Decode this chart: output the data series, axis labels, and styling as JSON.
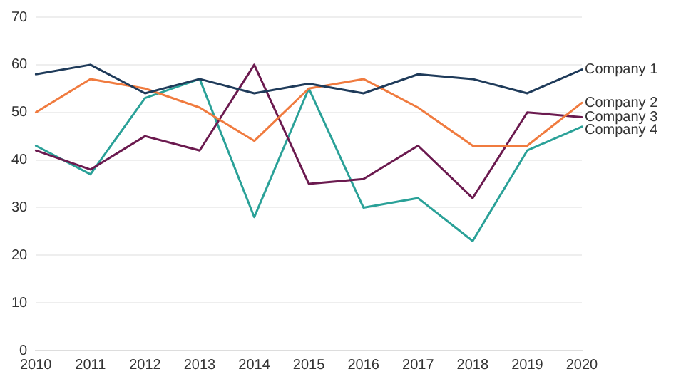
{
  "chart_data": {
    "type": "line",
    "categories": [
      "2010",
      "2011",
      "2012",
      "2013",
      "2014",
      "2015",
      "2016",
      "2017",
      "2018",
      "2019",
      "2020"
    ],
    "series": [
      {
        "name": "Company 1",
        "color": "#1f3b5a",
        "values": [
          58,
          60,
          54,
          57,
          54,
          56,
          54,
          58,
          57,
          54,
          59
        ]
      },
      {
        "name": "Company 2",
        "color": "#f07b3f",
        "values": [
          50,
          57,
          55,
          51,
          44,
          55,
          57,
          51,
          43,
          43,
          52
        ]
      },
      {
        "name": "Company 3",
        "color": "#6b1a4f",
        "values": [
          42,
          38,
          45,
          42,
          60,
          35,
          36,
          43,
          32,
          50,
          49
        ]
      },
      {
        "name": "Company 4",
        "color": "#2aa198",
        "values": [
          43,
          37,
          53,
          57,
          28,
          55,
          30,
          32,
          23,
          42,
          47
        ]
      }
    ],
    "ylim": [
      0,
      70
    ],
    "yticks": [
      0,
      10,
      20,
      30,
      40,
      50,
      60,
      70
    ],
    "grid": "y",
    "legend": false,
    "marker": "none",
    "line_style": "solid"
  }
}
